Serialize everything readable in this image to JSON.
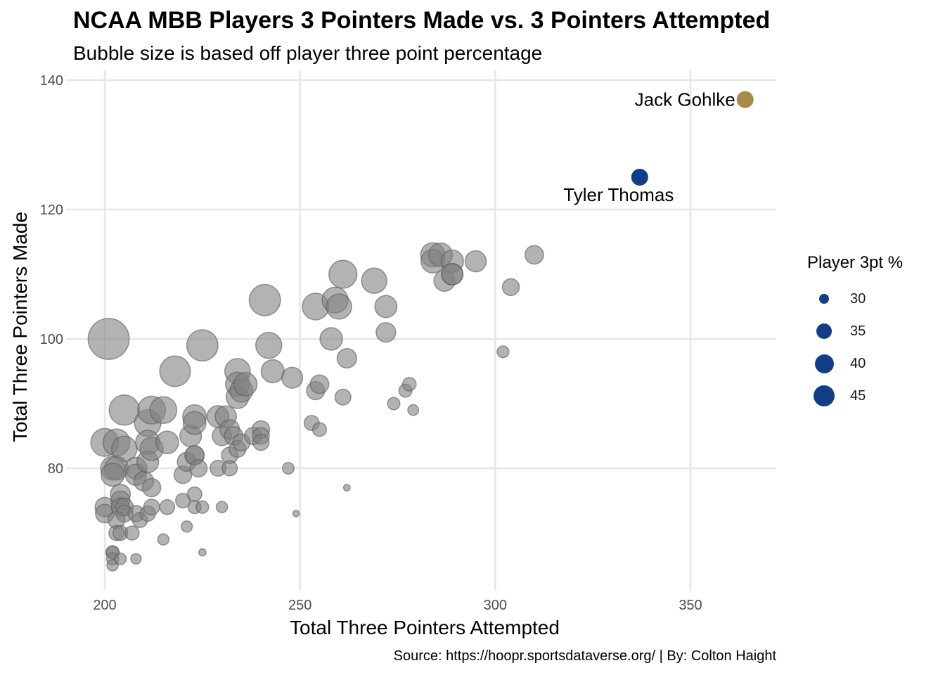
{
  "chart_data": {
    "type": "scatter",
    "title": "NCAA MBB Players 3 Pointers Made vs. 3 Pointers Attempted",
    "subtitle": "Bubble size is based off player three point percentage",
    "xlabel": "Total Three Pointers Attempted",
    "ylabel": "Total Three Pointers Made",
    "caption": "Source: https://hoopr.sportsdataverse.org/ | By: Colton Haight",
    "xlim": [
      192,
      372
    ],
    "ylim": [
      63,
      140
    ],
    "xticks": [
      200,
      250,
      300,
      350
    ],
    "yticks": [
      80,
      100,
      120,
      140
    ],
    "grid": true,
    "legend_position": "right",
    "legend": {
      "title": "Player 3pt %",
      "entries": [
        {
          "label": "30",
          "value": 30
        },
        {
          "label": "35",
          "value": 35
        },
        {
          "label": "40",
          "value": 40
        },
        {
          "label": "45",
          "value": 45
        }
      ]
    },
    "colors": {
      "default": "#808080",
      "highlight_blue": "#133e87",
      "highlight_gold": "#a68a47",
      "grid": "#e6e6e6"
    },
    "points": [
      {
        "x": 201,
        "y": 100,
        "pct": 49.8
      },
      {
        "x": 200,
        "y": 84,
        "pct": 42.0
      },
      {
        "x": 203,
        "y": 84,
        "pct": 41.4
      },
      {
        "x": 205,
        "y": 83,
        "pct": 40.5
      },
      {
        "x": 202,
        "y": 80,
        "pct": 39.6
      },
      {
        "x": 203,
        "y": 80,
        "pct": 39.4
      },
      {
        "x": 202,
        "y": 79,
        "pct": 39.1
      },
      {
        "x": 200,
        "y": 74,
        "pct": 37.0
      },
      {
        "x": 200,
        "y": 73,
        "pct": 36.5
      },
      {
        "x": 204,
        "y": 76,
        "pct": 37.3
      },
      {
        "x": 204,
        "y": 75,
        "pct": 36.8
      },
      {
        "x": 204,
        "y": 74,
        "pct": 36.3
      },
      {
        "x": 205,
        "y": 74,
        "pct": 36.1
      },
      {
        "x": 205,
        "y": 73,
        "pct": 35.6
      },
      {
        "x": 203,
        "y": 72,
        "pct": 35.5
      },
      {
        "x": 203,
        "y": 70,
        "pct": 34.5
      },
      {
        "x": 204,
        "y": 70,
        "pct": 34.3
      },
      {
        "x": 202,
        "y": 67,
        "pct": 33.2
      },
      {
        "x": 202,
        "y": 67,
        "pct": 33.2
      },
      {
        "x": 202,
        "y": 66,
        "pct": 32.7
      },
      {
        "x": 202,
        "y": 65,
        "pct": 32.2
      },
      {
        "x": 204,
        "y": 66,
        "pct": 32.4
      },
      {
        "x": 205,
        "y": 89,
        "pct": 43.4
      },
      {
        "x": 207,
        "y": 70,
        "pct": 33.8
      },
      {
        "x": 208,
        "y": 80,
        "pct": 38.5
      },
      {
        "x": 208,
        "y": 79,
        "pct": 38.0
      },
      {
        "x": 208,
        "y": 73,
        "pct": 35.1
      },
      {
        "x": 208,
        "y": 66,
        "pct": 31.7
      },
      {
        "x": 209,
        "y": 72,
        "pct": 34.4
      },
      {
        "x": 210,
        "y": 78,
        "pct": 37.1
      },
      {
        "x": 211,
        "y": 87,
        "pct": 41.2
      },
      {
        "x": 211,
        "y": 84,
        "pct": 39.8
      },
      {
        "x": 211,
        "y": 81,
        "pct": 38.4
      },
      {
        "x": 211,
        "y": 73,
        "pct": 34.6
      },
      {
        "x": 212,
        "y": 89,
        "pct": 42.0
      },
      {
        "x": 212,
        "y": 83,
        "pct": 39.2
      },
      {
        "x": 212,
        "y": 77,
        "pct": 36.3
      },
      {
        "x": 212,
        "y": 74,
        "pct": 34.9
      },
      {
        "x": 215,
        "y": 89,
        "pct": 41.4
      },
      {
        "x": 216,
        "y": 84,
        "pct": 38.9
      },
      {
        "x": 216,
        "y": 74,
        "pct": 34.3
      },
      {
        "x": 215,
        "y": 69,
        "pct": 32.1
      },
      {
        "x": 218,
        "y": 95,
        "pct": 43.6
      },
      {
        "x": 220,
        "y": 79,
        "pct": 35.9
      },
      {
        "x": 220,
        "y": 75,
        "pct": 34.1
      },
      {
        "x": 221,
        "y": 81,
        "pct": 36.7
      },
      {
        "x": 221,
        "y": 71,
        "pct": 32.1
      },
      {
        "x": 222,
        "y": 85,
        "pct": 38.3
      },
      {
        "x": 223,
        "y": 88,
        "pct": 39.5
      },
      {
        "x": 223,
        "y": 87,
        "pct": 39.0
      },
      {
        "x": 223,
        "y": 82,
        "pct": 36.8
      },
      {
        "x": 223,
        "y": 82,
        "pct": 36.8
      },
      {
        "x": 224,
        "y": 80,
        "pct": 35.7
      },
      {
        "x": 223,
        "y": 76,
        "pct": 34.1
      },
      {
        "x": 223,
        "y": 74,
        "pct": 33.2
      },
      {
        "x": 225,
        "y": 74,
        "pct": 32.9
      },
      {
        "x": 225,
        "y": 67,
        "pct": 29.8
      },
      {
        "x": 225,
        "y": 99,
        "pct": 44.0
      },
      {
        "x": 229,
        "y": 88,
        "pct": 38.4
      },
      {
        "x": 229,
        "y": 80,
        "pct": 34.9
      },
      {
        "x": 230,
        "y": 85,
        "pct": 37.0
      },
      {
        "x": 230,
        "y": 74,
        "pct": 32.2
      },
      {
        "x": 231,
        "y": 88,
        "pct": 38.1
      },
      {
        "x": 232,
        "y": 86,
        "pct": 37.1
      },
      {
        "x": 232,
        "y": 82,
        "pct": 35.3
      },
      {
        "x": 232,
        "y": 80,
        "pct": 34.5
      },
      {
        "x": 233,
        "y": 85,
        "pct": 36.5
      },
      {
        "x": 234,
        "y": 95,
        "pct": 40.6
      },
      {
        "x": 234,
        "y": 93,
        "pct": 39.7
      },
      {
        "x": 234,
        "y": 91,
        "pct": 38.9
      },
      {
        "x": 234,
        "y": 83,
        "pct": 35.5
      },
      {
        "x": 235,
        "y": 92,
        "pct": 39.1
      },
      {
        "x": 235,
        "y": 84,
        "pct": 35.7
      },
      {
        "x": 236,
        "y": 93,
        "pct": 39.4
      },
      {
        "x": 238,
        "y": 85,
        "pct": 35.7
      },
      {
        "x": 240,
        "y": 86,
        "pct": 35.8
      },
      {
        "x": 240,
        "y": 85,
        "pct": 35.4
      },
      {
        "x": 240,
        "y": 84,
        "pct": 35.0
      },
      {
        "x": 241,
        "y": 106,
        "pct": 44.0
      },
      {
        "x": 242,
        "y": 99,
        "pct": 40.9
      },
      {
        "x": 243,
        "y": 95,
        "pct": 39.1
      },
      {
        "x": 247,
        "y": 80,
        "pct": 32.4
      },
      {
        "x": 248,
        "y": 94,
        "pct": 37.9
      },
      {
        "x": 249,
        "y": 73,
        "pct": 29.3
      },
      {
        "x": 253,
        "y": 87,
        "pct": 34.4
      },
      {
        "x": 254,
        "y": 105,
        "pct": 41.3
      },
      {
        "x": 254,
        "y": 92,
        "pct": 36.2
      },
      {
        "x": 255,
        "y": 93,
        "pct": 36.5
      },
      {
        "x": 255,
        "y": 86,
        "pct": 33.7
      },
      {
        "x": 258,
        "y": 100,
        "pct": 38.8
      },
      {
        "x": 259,
        "y": 106,
        "pct": 40.9
      },
      {
        "x": 260,
        "y": 105,
        "pct": 40.4
      },
      {
        "x": 261,
        "y": 110,
        "pct": 42.1
      },
      {
        "x": 261,
        "y": 91,
        "pct": 34.9
      },
      {
        "x": 262,
        "y": 97,
        "pct": 37.0
      },
      {
        "x": 262,
        "y": 77,
        "pct": 29.4
      },
      {
        "x": 269,
        "y": 109,
        "pct": 40.5
      },
      {
        "x": 272,
        "y": 105,
        "pct": 38.6
      },
      {
        "x": 272,
        "y": 101,
        "pct": 37.1
      },
      {
        "x": 274,
        "y": 90,
        "pct": 32.8
      },
      {
        "x": 277,
        "y": 92,
        "pct": 33.2
      },
      {
        "x": 278,
        "y": 93,
        "pct": 33.5
      },
      {
        "x": 279,
        "y": 89,
        "pct": 31.9
      },
      {
        "x": 284,
        "y": 113,
        "pct": 39.8
      },
      {
        "x": 284,
        "y": 112,
        "pct": 39.4
      },
      {
        "x": 286,
        "y": 113,
        "pct": 39.5
      },
      {
        "x": 287,
        "y": 109,
        "pct": 38.0
      },
      {
        "x": 289,
        "y": 112,
        "pct": 38.8
      },
      {
        "x": 289,
        "y": 110,
        "pct": 38.1
      },
      {
        "x": 289,
        "y": 110,
        "pct": 38.1
      },
      {
        "x": 295,
        "y": 112,
        "pct": 38.0
      },
      {
        "x": 302,
        "y": 98,
        "pct": 32.5
      },
      {
        "x": 304,
        "y": 108,
        "pct": 35.5
      },
      {
        "x": 310,
        "y": 113,
        "pct": 36.5
      }
    ],
    "highlighted": [
      {
        "name": "Jack Gohlke",
        "x": 364,
        "y": 137,
        "pct": 37.6,
        "color": "#a68a47"
      },
      {
        "name": "Tyler Thomas",
        "x": 337,
        "y": 125,
        "pct": 37.1,
        "color": "#133e87"
      }
    ]
  }
}
